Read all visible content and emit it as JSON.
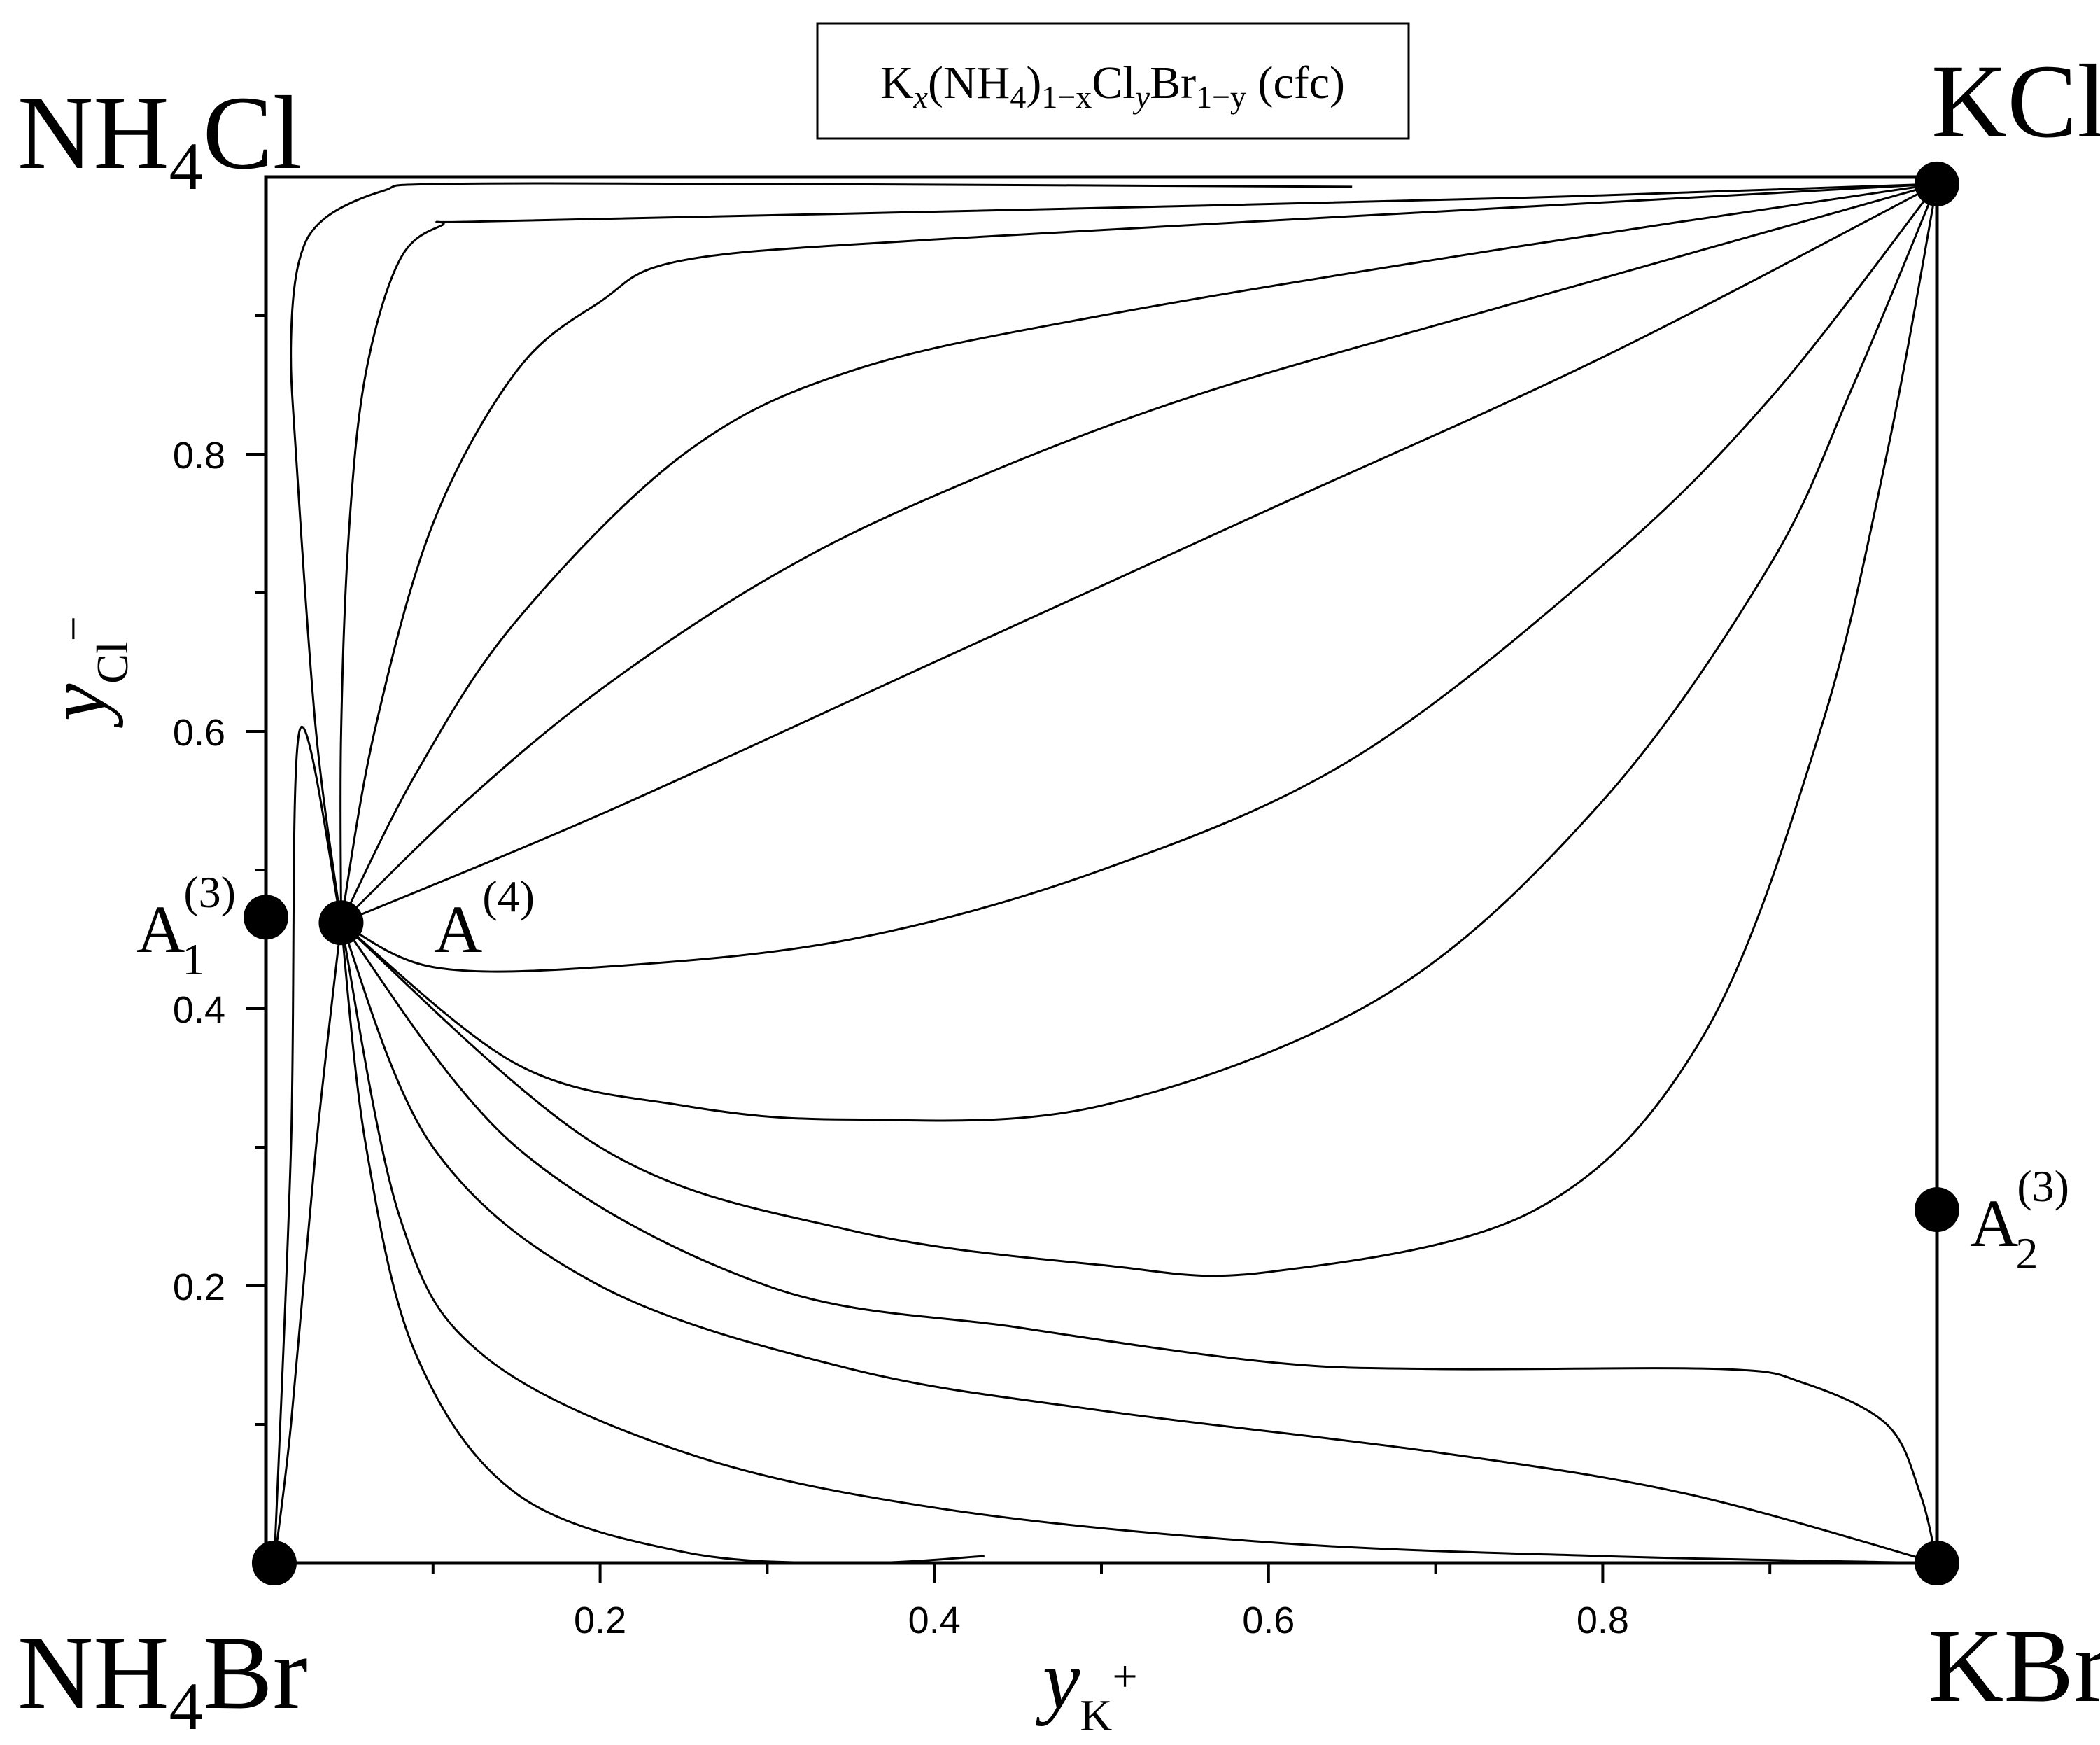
{
  "chart_data": {
    "type": "line",
    "title": "Kx(NH4)1−xClyBr1−y (cfc)",
    "title_parts": {
      "k": "K",
      "x": "x",
      "nh": "(NH",
      "four": "4",
      "close": ")",
      "sub1x": "1−x",
      "cl": "Cl",
      "y": "y",
      "br": "Br",
      "sub1y": "1−y",
      "cfc": " (cfc)"
    },
    "xlabel": "yK+",
    "xlabel_parts": {
      "main": "y",
      "sub": "K",
      "sup": "+"
    },
    "ylabel": "yCl−",
    "ylabel_parts": {
      "main": "y",
      "sub": "Cl",
      "sup": "−"
    },
    "xlim": [
      0,
      1
    ],
    "ylim": [
      0,
      1
    ],
    "x_ticks": [
      0.2,
      0.4,
      0.6,
      0.8
    ],
    "x_tick_labels": [
      "0.2",
      "0.4",
      "0.6",
      "0.8"
    ],
    "y_ticks": [
      0.2,
      0.4,
      0.6,
      0.8
    ],
    "y_tick_labels": [
      "0.2",
      "0.4",
      "0.6",
      "0.8"
    ],
    "x_minor_ticks": [
      0.1,
      0.3,
      0.5,
      0.7,
      0.9
    ],
    "y_minor_ticks": [
      0.1,
      0.3,
      0.5,
      0.7,
      0.9
    ],
    "grid": false,
    "corners": [
      {
        "name": "NH4Cl",
        "main": "NH",
        "sub": "4",
        "rest": "Cl",
        "x": 0,
        "y": 1
      },
      {
        "name": "KCl",
        "main": "KCl",
        "sub": "",
        "rest": "",
        "x": 1,
        "y": 1
      },
      {
        "name": "NH4Br",
        "main": "NH",
        "sub": "4",
        "rest": "Br",
        "x": 0,
        "y": 0
      },
      {
        "name": "KBr",
        "main": "KBr",
        "sub": "",
        "rest": "",
        "x": 1,
        "y": 0
      }
    ],
    "points": [
      {
        "name": "A1(3)",
        "main": "A",
        "sub": "1",
        "sup": "(3)",
        "x": 0.0,
        "y": 0.466
      },
      {
        "name": "A(4)",
        "main": "A",
        "sub": "",
        "sup": "(4)",
        "x": 0.045,
        "y": 0.462
      },
      {
        "name": "A2(3)",
        "main": "A",
        "sub": "2",
        "sup": "(3)",
        "x": 1.0,
        "y": 0.255
      },
      {
        "name": "KCl-node",
        "main": "",
        "sub": "",
        "sup": "",
        "x": 1.0,
        "y": 0.995
      },
      {
        "name": "KBr-node",
        "main": "",
        "sub": "",
        "sup": "",
        "x": 1.0,
        "y": 0.0
      },
      {
        "name": "NH4Br-node",
        "main": "",
        "sub": "",
        "sup": "",
        "x": 0.005,
        "y": 0.0
      }
    ],
    "series": [
      {
        "name": "curve-1",
        "points": [
          [
            0.045,
            0.462
          ],
          [
            0.03,
            0.6
          ],
          [
            0.018,
            0.8
          ],
          [
            0.015,
            0.88
          ],
          [
            0.02,
            0.94
          ],
          [
            0.035,
            0.97
          ],
          [
            0.07,
            0.99
          ],
          [
            0.105,
            0.995
          ],
          [
            0.3,
            0.995
          ],
          [
            0.65,
            0.993
          ]
        ]
      },
      {
        "name": "curve-2",
        "points": [
          [
            0.045,
            0.462
          ],
          [
            0.045,
            0.6
          ],
          [
            0.05,
            0.75
          ],
          [
            0.06,
            0.86
          ],
          [
            0.08,
            0.94
          ],
          [
            0.105,
            0.965
          ],
          [
            0.13,
            0.968
          ],
          [
            0.4,
            0.975
          ],
          [
            0.75,
            0.985
          ],
          [
            1.0,
            0.995
          ]
        ]
      },
      {
        "name": "curve-3",
        "points": [
          [
            0.045,
            0.462
          ],
          [
            0.065,
            0.6
          ],
          [
            0.1,
            0.75
          ],
          [
            0.15,
            0.86
          ],
          [
            0.2,
            0.91
          ],
          [
            0.25,
            0.94
          ],
          [
            0.4,
            0.955
          ],
          [
            0.7,
            0.975
          ],
          [
            1.0,
            0.995
          ]
        ]
      },
      {
        "name": "curve-4",
        "points": [
          [
            0.045,
            0.462
          ],
          [
            0.09,
            0.57
          ],
          [
            0.15,
            0.68
          ],
          [
            0.25,
            0.8
          ],
          [
            0.35,
            0.86
          ],
          [
            0.5,
            0.9
          ],
          [
            0.75,
            0.95
          ],
          [
            1.0,
            0.995
          ]
        ]
      },
      {
        "name": "curve-5",
        "points": [
          [
            0.045,
            0.462
          ],
          [
            0.12,
            0.55
          ],
          [
            0.2,
            0.63
          ],
          [
            0.3,
            0.71
          ],
          [
            0.4,
            0.77
          ],
          [
            0.55,
            0.84
          ],
          [
            0.75,
            0.91
          ],
          [
            1.0,
            0.995
          ]
        ]
      },
      {
        "name": "curve-6",
        "points": [
          [
            0.045,
            0.462
          ],
          [
            0.2,
            0.54
          ],
          [
            0.4,
            0.65
          ],
          [
            0.6,
            0.76
          ],
          [
            0.8,
            0.87
          ],
          [
            1.0,
            0.995
          ]
        ]
      },
      {
        "name": "curve-7",
        "points": [
          [
            0.045,
            0.462
          ],
          [
            0.1,
            0.43
          ],
          [
            0.2,
            0.43
          ],
          [
            0.35,
            0.45
          ],
          [
            0.5,
            0.5
          ],
          [
            0.65,
            0.58
          ],
          [
            0.8,
            0.72
          ],
          [
            0.9,
            0.84
          ],
          [
            1.0,
            0.995
          ]
        ]
      },
      {
        "name": "curve-8",
        "points": [
          [
            0.045,
            0.462
          ],
          [
            0.15,
            0.36
          ],
          [
            0.25,
            0.33
          ],
          [
            0.35,
            0.32
          ],
          [
            0.5,
            0.33
          ],
          [
            0.67,
            0.41
          ],
          [
            0.8,
            0.55
          ],
          [
            0.9,
            0.72
          ],
          [
            0.95,
            0.85
          ],
          [
            1.0,
            0.995
          ]
        ]
      },
      {
        "name": "curve-9",
        "points": [
          [
            0.045,
            0.462
          ],
          [
            0.2,
            0.3
          ],
          [
            0.35,
            0.24
          ],
          [
            0.5,
            0.215
          ],
          [
            0.6,
            0.21
          ],
          [
            0.76,
            0.255
          ],
          [
            0.86,
            0.38
          ],
          [
            0.93,
            0.6
          ],
          [
            0.97,
            0.8
          ],
          [
            1.0,
            0.995
          ]
        ]
      },
      {
        "name": "curve-10",
        "points": [
          [
            0.045,
            0.462
          ],
          [
            0.15,
            0.3
          ],
          [
            0.3,
            0.2
          ],
          [
            0.45,
            0.17
          ],
          [
            0.6,
            0.145
          ],
          [
            0.7,
            0.14
          ],
          [
            0.87,
            0.14
          ],
          [
            0.92,
            0.13
          ],
          [
            0.97,
            0.1
          ],
          [
            0.99,
            0.05
          ],
          [
            1.0,
            0.0
          ]
        ]
      },
      {
        "name": "curve-11",
        "points": [
          [
            0.045,
            0.462
          ],
          [
            0.1,
            0.3
          ],
          [
            0.2,
            0.2
          ],
          [
            0.35,
            0.14
          ],
          [
            0.5,
            0.11
          ],
          [
            0.7,
            0.08
          ],
          [
            0.85,
            0.05
          ],
          [
            1.0,
            0.0
          ]
        ]
      },
      {
        "name": "curve-12",
        "points": [
          [
            0.045,
            0.462
          ],
          [
            0.08,
            0.25
          ],
          [
            0.13,
            0.15
          ],
          [
            0.25,
            0.08
          ],
          [
            0.4,
            0.04
          ],
          [
            0.6,
            0.015
          ],
          [
            0.8,
            0.005
          ],
          [
            1.0,
            0.0
          ]
        ]
      },
      {
        "name": "curve-13",
        "points": [
          [
            0.045,
            0.462
          ],
          [
            0.06,
            0.3
          ],
          [
            0.09,
            0.15
          ],
          [
            0.15,
            0.05
          ],
          [
            0.25,
            0.008
          ],
          [
            0.35,
            0.0
          ],
          [
            0.43,
            0.005
          ]
        ]
      },
      {
        "name": "curve-14",
        "points": [
          [
            0.045,
            0.462
          ],
          [
            0.03,
            0.3
          ],
          [
            0.015,
            0.1
          ],
          [
            0.005,
            0.0
          ]
        ]
      },
      {
        "name": "curve-15",
        "points": [
          [
            0.005,
            0.0
          ],
          [
            0.015,
            0.3
          ],
          [
            0.02,
            0.6
          ],
          [
            0.045,
            0.462
          ]
        ]
      }
    ]
  }
}
